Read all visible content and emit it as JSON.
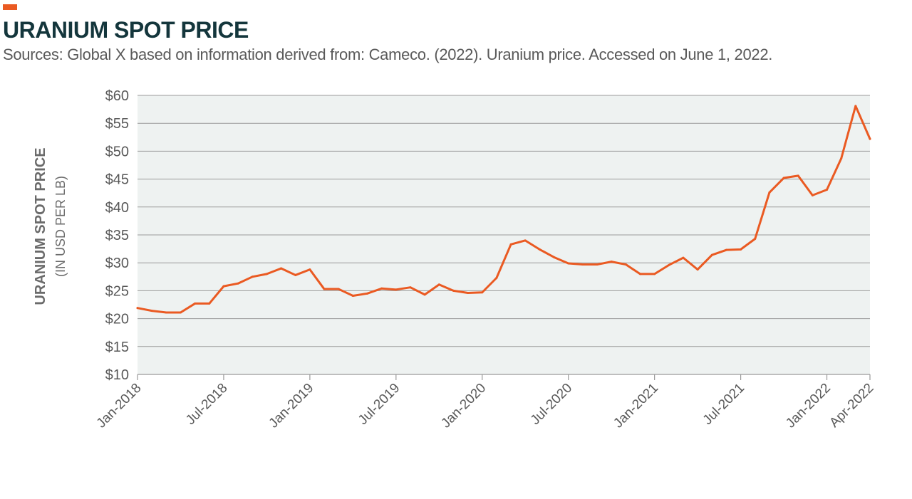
{
  "header": {
    "title": "URANIUM SPOT PRICE",
    "subtitle": "Sources: Global X based on information derived from: Cameco. (2022). Uranium price. Accessed on June 1, 2022."
  },
  "colors": {
    "accent": "#ea5a22",
    "line": "#ea5a22",
    "plot_background": "#eef2f1",
    "grid": "#9a9a9a",
    "title": "#14363c",
    "text": "#595959"
  },
  "chart_data": {
    "type": "line",
    "title": "URANIUM SPOT PRICE",
    "ylabel": "URANIUM SPOT PRICE",
    "ylabel_sub": "(IN USD PER LB)",
    "xlabel": "",
    "ylim": [
      10,
      60
    ],
    "y_ticks": [
      10,
      15,
      20,
      25,
      30,
      35,
      40,
      45,
      50,
      55,
      60
    ],
    "y_tick_labels": [
      "$10",
      "$15",
      "$20",
      "$25",
      "$30",
      "$35",
      "$40",
      "$45",
      "$50",
      "$55",
      "$60"
    ],
    "grid": true,
    "x_tick_labels": [
      "Jan-2018",
      "Jul-2018",
      "Jan-2019",
      "Jul-2019",
      "Jan-2020",
      "Jul-2020",
      "Jan-2021",
      "Jul-2021",
      "Jan-2022",
      "Apr-2022"
    ],
    "x_tick_dates": [
      "2018-01",
      "2018-07",
      "2019-01",
      "2019-07",
      "2020-01",
      "2020-07",
      "2021-01",
      "2021-07",
      "2022-01",
      "2022-04"
    ],
    "x": [
      "2018-01",
      "2018-02",
      "2018-03",
      "2018-04",
      "2018-05",
      "2018-06",
      "2018-07",
      "2018-08",
      "2018-09",
      "2018-10",
      "2018-11",
      "2018-12",
      "2019-01",
      "2019-02",
      "2019-03",
      "2019-04",
      "2019-05",
      "2019-06",
      "2019-07",
      "2019-08",
      "2019-09",
      "2019-10",
      "2019-11",
      "2019-12",
      "2020-01",
      "2020-02",
      "2020-03",
      "2020-04",
      "2020-05",
      "2020-06",
      "2020-07",
      "2020-08",
      "2020-09",
      "2020-10",
      "2020-11",
      "2020-12",
      "2021-01",
      "2021-02",
      "2021-03",
      "2021-04",
      "2021-05",
      "2021-06",
      "2021-07",
      "2021-08",
      "2021-09",
      "2021-10",
      "2021-11",
      "2021-12",
      "2022-01",
      "2022-02",
      "2022-03",
      "2022-04"
    ],
    "values": [
      21.9,
      21.4,
      21.1,
      21.1,
      22.7,
      22.7,
      25.8,
      26.3,
      27.5,
      28.0,
      29.0,
      27.8,
      28.8,
      25.3,
      25.3,
      24.1,
      24.5,
      25.4,
      25.2,
      25.6,
      24.3,
      26.1,
      25.0,
      24.6,
      24.7,
      27.3,
      33.3,
      34.0,
      32.4,
      31.0,
      29.9,
      29.7,
      29.7,
      30.2,
      29.7,
      28.0,
      28.0,
      29.6,
      30.9,
      28.8,
      31.4,
      32.3,
      32.4,
      34.3,
      42.6,
      45.2,
      45.6,
      42.1,
      43.1,
      48.7,
      58.1,
      52.2
    ],
    "series": [
      {
        "name": "",
        "color": "#ea5a22"
      }
    ]
  }
}
